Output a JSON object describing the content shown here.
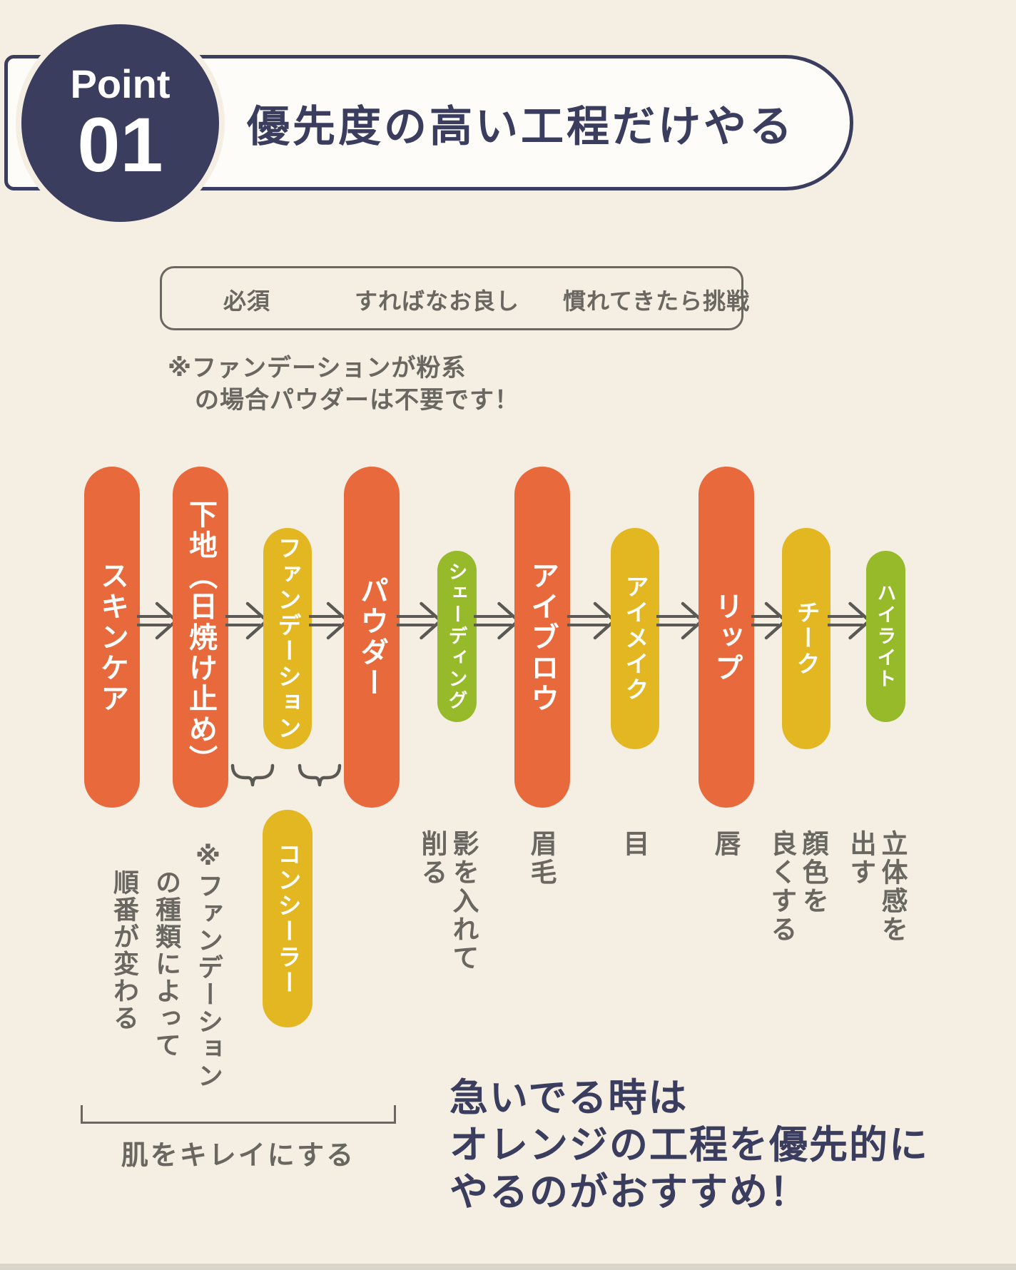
{
  "palette": {
    "background": "#f4eee3",
    "navy": "#3a3d5d",
    "orange_required": "#e7693c",
    "yellow_optional": "#e2b722",
    "green_advanced": "#96ba2a",
    "text_gray": "#6a6761",
    "banner_white": "#fdfcf8"
  },
  "header": {
    "badge_word": "Point",
    "badge_number": "01",
    "title": "優先度の高い工程だけやる"
  },
  "legend": {
    "items": [
      {
        "label": "必須",
        "priority": "required",
        "color": "#e7693c"
      },
      {
        "label": "すればなお良し",
        "priority": "optional",
        "color": "#e2b722"
      },
      {
        "label": "慣れてきたら挑戦",
        "priority": "advanced",
        "color": "#96ba2a"
      }
    ]
  },
  "note": {
    "line1": "※ファンデーションが粉系",
    "line2": "の場合パウダーは不要です！"
  },
  "flow": {
    "steps": [
      {
        "label": "スキンケア",
        "priority": "required",
        "under_label": ""
      },
      {
        "label": "下地（日焼け止め）",
        "priority": "required",
        "under_label": ""
      },
      {
        "label": "ファンデーション",
        "priority": "optional",
        "under_label": ""
      },
      {
        "label": "パウダー",
        "priority": "required",
        "under_label": ""
      },
      {
        "label": "シェーディング",
        "priority": "advanced",
        "under_label": "影を入れて\n削る"
      },
      {
        "label": "アイブロウ",
        "priority": "required",
        "under_label": "眉毛"
      },
      {
        "label": "アイメイク",
        "priority": "optional",
        "under_label": "目"
      },
      {
        "label": "リップ",
        "priority": "required",
        "under_label": "唇"
      },
      {
        "label": "チーク",
        "priority": "optional",
        "under_label": "顔色を\n良くする"
      },
      {
        "label": "ハイライト",
        "priority": "advanced",
        "under_label": "立体感を\n出す"
      }
    ],
    "branch_step": {
      "label": "コンシーラー",
      "priority": "optional"
    },
    "order_note": "※ファンデーション\n　の種類によって\n　順番が変わる"
  },
  "footer": {
    "bracket_label": "肌をキレイにする",
    "callout_line1": "急いでる時は",
    "callout_line2": "オレンジの工程を優先的に",
    "callout_line3": "やるのがおすすめ！"
  }
}
